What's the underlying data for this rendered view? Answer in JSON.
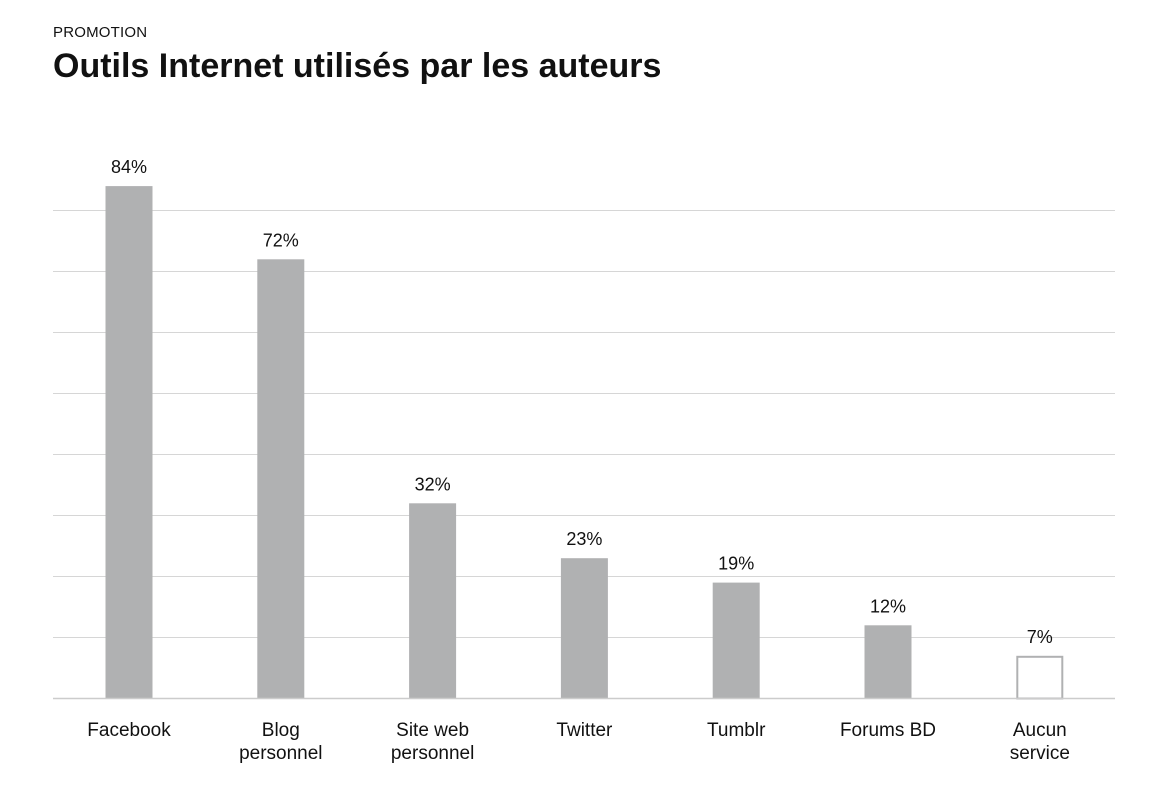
{
  "header": {
    "kicker": "PROMOTION",
    "title": "Outils Internet utilisés par les auteurs"
  },
  "chart_data": {
    "type": "bar",
    "categories": [
      [
        "Facebook"
      ],
      [
        "Blog",
        "personnel"
      ],
      [
        "Site web",
        "personnel"
      ],
      [
        "Twitter"
      ],
      [
        "Tumblr"
      ],
      [
        "Forums BD"
      ],
      [
        "Aucun",
        "service"
      ]
    ],
    "values": [
      84,
      72,
      32,
      23,
      19,
      12,
      7
    ],
    "value_labels": [
      "84%",
      "72%",
      "32%",
      "23%",
      "19%",
      "12%",
      "7%"
    ],
    "highlight": [
      false,
      false,
      false,
      false,
      false,
      false,
      true
    ],
    "ylim": [
      0,
      90
    ],
    "grid": true,
    "xlabel": "",
    "ylabel": "",
    "colors": {
      "bar": "#b0b1b2",
      "highlight_fill": "#ffffff",
      "highlight_stroke": "#b0b1b2"
    }
  }
}
